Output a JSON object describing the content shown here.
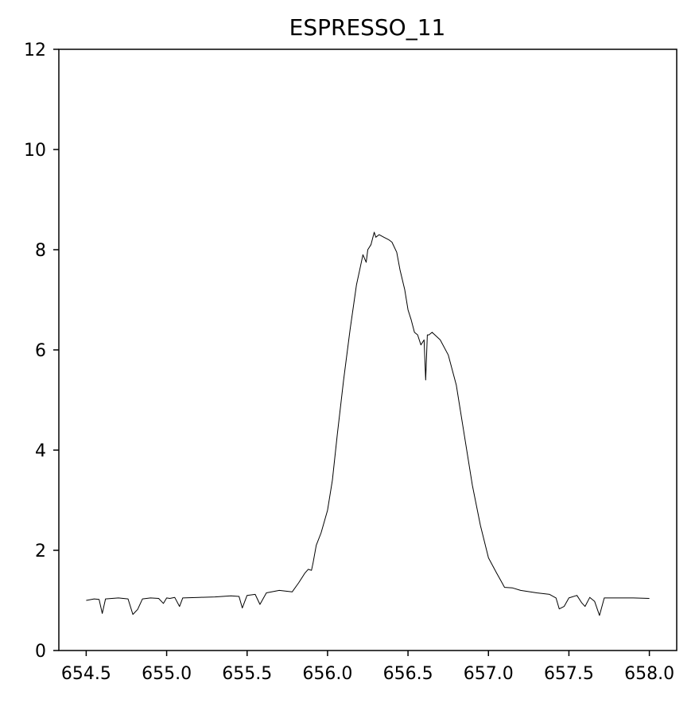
{
  "chart_data": {
    "type": "line",
    "title": "ESPRESSO_11",
    "xlabel": "",
    "ylabel": "",
    "xlim": [
      654.33,
      658.17
    ],
    "ylim": [
      0,
      12
    ],
    "xticks": [
      654.5,
      655.0,
      655.5,
      656.0,
      656.5,
      657.0,
      657.5,
      658.0
    ],
    "xtick_labels": [
      "654.5",
      "655.0",
      "655.5",
      "656.0",
      "656.5",
      "657.0",
      "657.5",
      "658.0"
    ],
    "yticks": [
      0,
      2,
      4,
      6,
      8,
      10,
      12
    ],
    "ytick_labels": [
      "0",
      "2",
      "4",
      "6",
      "8",
      "10",
      "12"
    ],
    "grid": false,
    "line_color": "#000000",
    "series": [
      {
        "x": [
          654.5,
          654.55,
          654.58,
          654.6,
          654.62,
          654.7,
          654.76,
          654.79,
          654.82,
          654.85,
          654.9,
          654.95,
          654.98,
          655.0,
          655.02,
          655.05,
          655.08,
          655.1,
          655.2,
          655.3,
          655.4,
          655.45,
          655.47,
          655.5,
          655.55,
          655.58,
          655.62,
          655.7,
          655.78,
          655.82,
          655.86,
          655.88,
          655.9,
          655.91,
          655.93,
          655.96,
          656.0,
          656.03,
          656.06,
          656.1,
          656.14,
          656.18,
          656.2,
          656.22,
          656.24,
          656.25,
          656.27,
          656.29,
          656.3,
          656.32,
          656.35,
          656.38,
          656.4,
          656.43,
          656.45,
          656.48,
          656.5,
          656.52,
          656.54,
          656.56,
          656.58,
          656.6,
          656.61,
          656.62,
          656.63,
          656.65,
          656.7,
          656.75,
          656.8,
          656.85,
          656.9,
          656.95,
          657.0,
          657.05,
          657.08,
          657.1,
          657.15,
          657.2,
          657.3,
          657.38,
          657.42,
          657.44,
          657.47,
          657.5,
          657.55,
          657.58,
          657.6,
          657.63,
          657.66,
          657.69,
          657.72,
          657.8,
          657.9,
          658.0
        ],
        "y": [
          1.0,
          1.03,
          1.02,
          0.74,
          1.03,
          1.05,
          1.03,
          0.72,
          0.82,
          1.03,
          1.05,
          1.04,
          0.94,
          1.05,
          1.04,
          1.06,
          0.88,
          1.05,
          1.06,
          1.07,
          1.09,
          1.08,
          0.85,
          1.1,
          1.12,
          0.92,
          1.15,
          1.2,
          1.17,
          1.35,
          1.55,
          1.62,
          1.6,
          1.75,
          2.1,
          2.35,
          2.8,
          3.4,
          4.3,
          5.4,
          6.4,
          7.3,
          7.6,
          7.9,
          7.75,
          8.0,
          8.1,
          8.35,
          8.25,
          8.3,
          8.25,
          8.2,
          8.15,
          7.95,
          7.6,
          7.2,
          6.8,
          6.6,
          6.35,
          6.3,
          6.1,
          6.2,
          5.4,
          6.3,
          6.3,
          6.35,
          6.2,
          5.9,
          5.3,
          4.3,
          3.3,
          2.5,
          1.85,
          1.55,
          1.38,
          1.26,
          1.25,
          1.2,
          1.15,
          1.12,
          1.05,
          0.83,
          0.88,
          1.05,
          1.1,
          0.95,
          0.88,
          1.06,
          0.98,
          0.7,
          1.05,
          1.05,
          1.05,
          1.04
        ]
      }
    ]
  }
}
